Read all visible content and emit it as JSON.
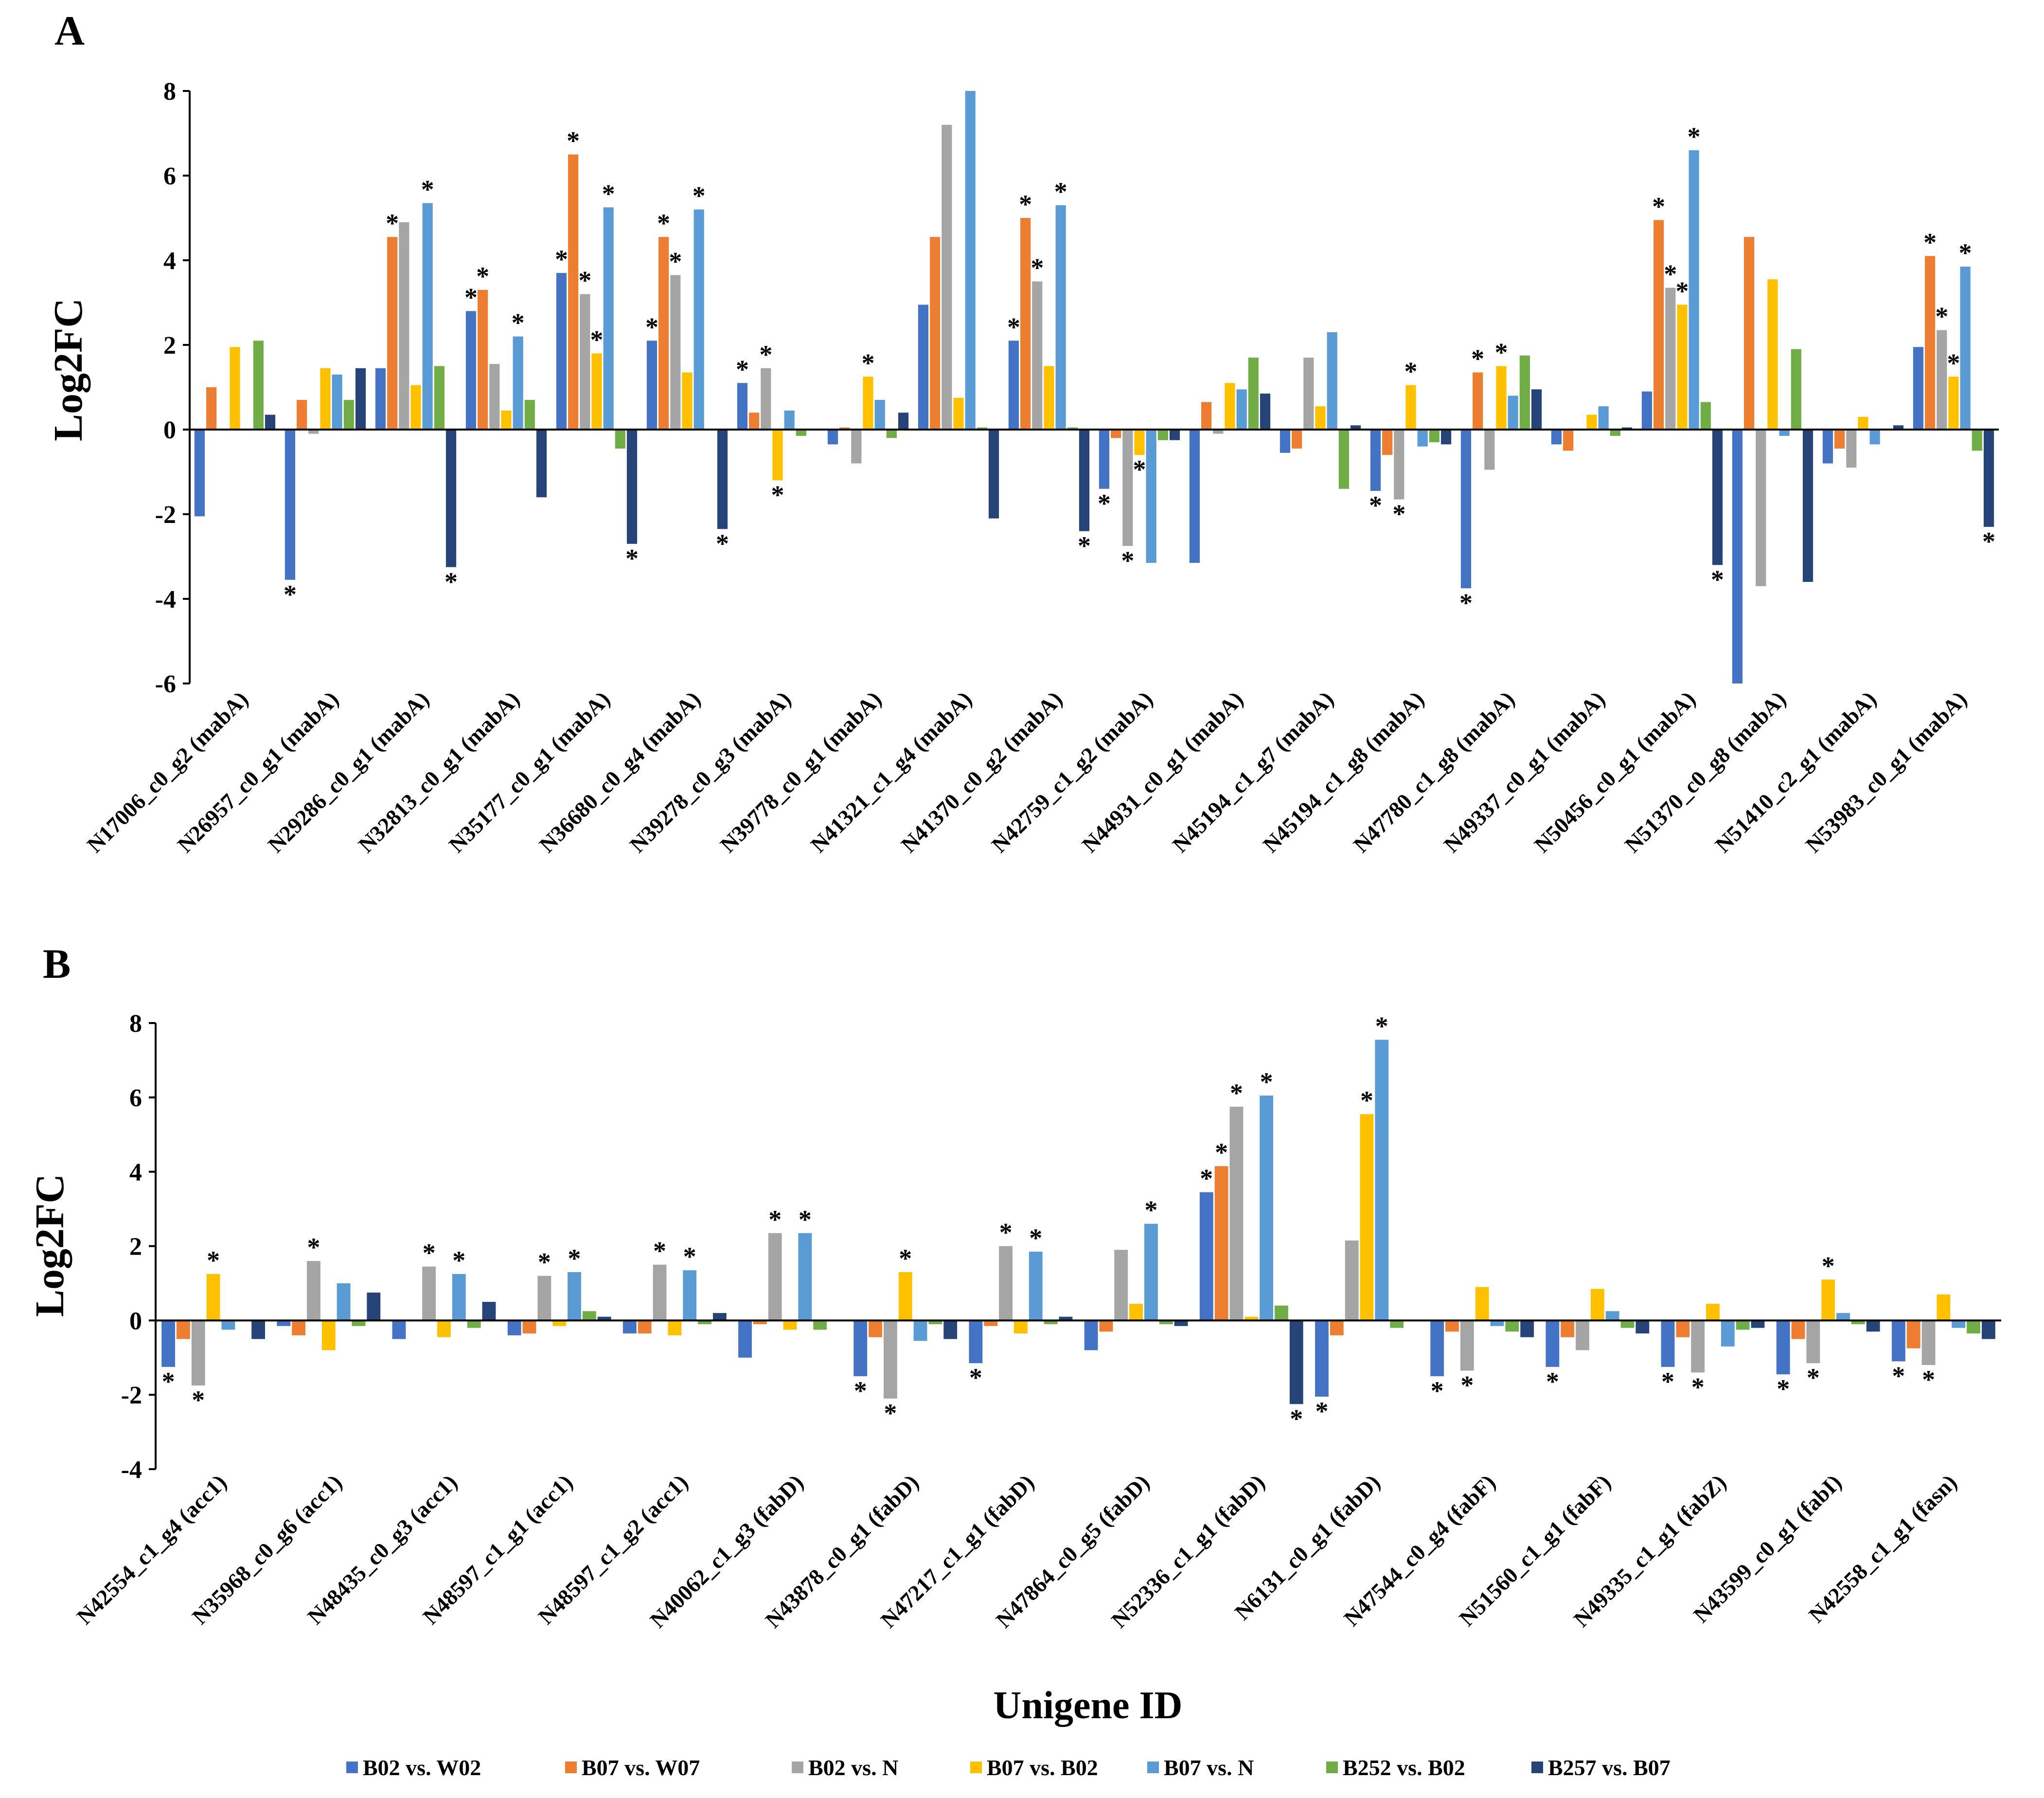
{
  "chart_data": [
    {
      "panel": "A",
      "type": "bar",
      "ylabel": "Log2FC",
      "ylim": [
        -6,
        8
      ],
      "yticks": [
        -6,
        -4,
        -2,
        0,
        2,
        4,
        6,
        8
      ],
      "categories": [
        "N17006_c0_g2 (mabA)",
        "N26957_c0_g1 (mabA)",
        "N29286_c0_g1 (mabA)",
        "N32813_c0_g1 (mabA)",
        "N35177_c0_g1 (mabA)",
        "N36680_c0_g4 (mabA)",
        "N39278_c0_g3 (mabA)",
        "N39778_c0_g1 (mabA)",
        "N41321_c1_g4 (mabA)",
        "N41370_c0_g2 (mabA)",
        "N42759_c1_g2 (mabA)",
        "N44931_c0_g1 (mabA)",
        "N45194_c1_g7 (mabA)",
        "N45194_c1_g8 (mabA)",
        "N47780_c1_g8 (mabA)",
        "N49337_c0_g1 (mabA)",
        "N50456_c0_g1 (mabA)",
        "N51370_c0_g8 (mabA)",
        "N51410_c2_g1 (mabA)",
        "N53983_c0_g1 (mabA)"
      ],
      "series": [
        {
          "name": "B02 vs. W02",
          "values": [
            -2.05,
            -3.55,
            1.45,
            2.8,
            3.7,
            2.1,
            1.1,
            -0.35,
            2.95,
            2.1,
            -1.4,
            -3.15,
            -0.55,
            -1.45,
            -3.75,
            -0.35,
            0.9,
            -6.0,
            -0.8,
            1.95
          ]
        },
        {
          "name": "B07 vs. W07",
          "values": [
            1.0,
            0.7,
            4.55,
            3.3,
            6.5,
            4.55,
            0.4,
            0.05,
            4.55,
            5.0,
            -0.2,
            0.65,
            -0.45,
            -0.6,
            1.35,
            -0.5,
            4.95,
            4.55,
            -0.45,
            4.1
          ]
        },
        {
          "name": "B02 vs. N",
          "values": [
            0.0,
            -0.1,
            4.9,
            1.55,
            3.2,
            3.65,
            1.45,
            -0.8,
            7.2,
            3.5,
            -2.75,
            -0.1,
            1.7,
            -1.65,
            -0.95,
            0.0,
            3.35,
            -3.7,
            -0.9,
            2.35
          ]
        },
        {
          "name": "B07 vs. B02",
          "values": [
            1.95,
            1.45,
            1.05,
            0.45,
            1.8,
            1.35,
            -1.2,
            1.25,
            0.75,
            1.5,
            -0.6,
            1.1,
            0.55,
            1.05,
            1.5,
            0.35,
            2.95,
            3.55,
            0.3,
            1.25
          ]
        },
        {
          "name": "B07 vs. N",
          "values": [
            0.0,
            1.3,
            5.35,
            2.2,
            5.25,
            5.2,
            0.45,
            0.7,
            8.0,
            5.3,
            -3.15,
            0.95,
            2.3,
            -0.4,
            0.8,
            0.55,
            6.6,
            -0.15,
            -0.35,
            3.85
          ]
        },
        {
          "name": "B252 vs. B02",
          "values": [
            2.1,
            0.7,
            1.5,
            0.7,
            -0.45,
            0.0,
            -0.15,
            -0.2,
            0.05,
            0.05,
            -0.25,
            1.7,
            -1.4,
            -0.3,
            1.75,
            -0.15,
            0.65,
            1.9,
            0.0,
            -0.5
          ]
        },
        {
          "name": "B257 vs. B07",
          "values": [
            0.35,
            1.45,
            -3.25,
            -1.6,
            -2.7,
            -2.35,
            0.0,
            0.4,
            -2.1,
            -2.4,
            -0.25,
            0.85,
            0.1,
            -0.35,
            0.95,
            0.05,
            -3.2,
            -3.6,
            0.1,
            -2.3
          ]
        }
      ],
      "significance": [
        [],
        [
          [
            0,
            "below"
          ]
        ],
        [
          [
            1,
            "above"
          ],
          [
            4,
            "above"
          ],
          [
            6,
            "below"
          ]
        ],
        [
          [
            0,
            "above"
          ],
          [
            1,
            "above"
          ],
          [
            4,
            "above"
          ]
        ],
        [
          [
            0,
            "above"
          ],
          [
            1,
            "above"
          ],
          [
            2,
            "above"
          ],
          [
            3,
            "above"
          ],
          [
            4,
            "above"
          ],
          [
            6,
            "below"
          ]
        ],
        [
          [
            0,
            "above"
          ],
          [
            1,
            "above"
          ],
          [
            2,
            "above"
          ],
          [
            4,
            "above"
          ],
          [
            6,
            "below"
          ]
        ],
        [
          [
            0,
            "above"
          ],
          [
            2,
            "above"
          ],
          [
            3,
            "below"
          ]
        ],
        [
          [
            3,
            "above"
          ]
        ],
        [],
        [
          [
            0,
            "above"
          ],
          [
            1,
            "above"
          ],
          [
            2,
            "above"
          ],
          [
            4,
            "above"
          ],
          [
            6,
            "below"
          ]
        ],
        [
          [
            0,
            "below"
          ],
          [
            2,
            "below"
          ],
          [
            3,
            "below"
          ]
        ],
        [],
        [],
        [
          [
            0,
            "below"
          ],
          [
            2,
            "below"
          ],
          [
            3,
            "above"
          ]
        ],
        [
          [
            0,
            "below"
          ],
          [
            1,
            "above"
          ],
          [
            3,
            "above"
          ]
        ],
        [],
        [
          [
            1,
            "above"
          ],
          [
            2,
            "above"
          ],
          [
            3,
            "above"
          ],
          [
            4,
            "above"
          ],
          [
            6,
            "below"
          ]
        ],
        [],
        [],
        [
          [
            1,
            "above"
          ],
          [
            2,
            "above"
          ],
          [
            3,
            "above"
          ],
          [
            4,
            "above"
          ],
          [
            6,
            "below"
          ]
        ]
      ]
    },
    {
      "panel": "B",
      "type": "bar",
      "ylabel": "Log2FC",
      "xlabel": "Unigene ID",
      "ylim": [
        -4,
        8
      ],
      "yticks": [
        -4,
        -2,
        0,
        2,
        4,
        6,
        8
      ],
      "categories": [
        "N42554_c1_g4 (acc1)",
        "N35968_c0_g6 (acc1)",
        "N48435_c0_g3 (acc1)",
        "N48597_c1_g1 (acc1)",
        "N48597_c1_g2 (acc1)",
        "N40062_c1_g3 (fabD)",
        "N43878_c0_g1 (fabD)",
        "N47217_c1_g1 (fabD)",
        "N47864_c0_g5 (fabD)",
        "N52336_c1_g1 (fabD)",
        "N6131_c0_g1 (fabD)",
        "N47544_c0_g4 (fabF)",
        "N51560_c1_g1 (fabF)",
        "N49335_c1_g1 (fabZ)",
        "N43599_c0_g1 (fabI)",
        "N42558_c1_g1 (fasn)"
      ],
      "series": [
        {
          "name": "B02 vs. W02",
          "values": [
            -1.25,
            -0.15,
            -0.5,
            -0.4,
            -0.35,
            -1.0,
            -1.5,
            -1.15,
            -0.8,
            3.45,
            -2.05,
            -1.5,
            -1.25,
            -1.25,
            -1.45,
            -1.1
          ]
        },
        {
          "name": "B07 vs. W07",
          "values": [
            -0.5,
            -0.4,
            0.0,
            -0.35,
            -0.35,
            -0.1,
            -0.45,
            -0.15,
            -0.3,
            4.15,
            -0.4,
            -0.3,
            -0.45,
            -0.45,
            -0.5,
            -0.75
          ]
        },
        {
          "name": "B02 vs. N",
          "values": [
            -1.75,
            1.6,
            1.45,
            1.2,
            1.5,
            2.35,
            -2.1,
            2.0,
            1.9,
            5.75,
            2.15,
            -1.35,
            -0.8,
            -1.4,
            -1.15,
            -1.2
          ]
        },
        {
          "name": "B07 vs. B02",
          "values": [
            1.25,
            -0.8,
            -0.45,
            -0.15,
            -0.4,
            -0.25,
            1.3,
            -0.35,
            0.45,
            0.1,
            5.55,
            0.9,
            0.85,
            0.45,
            1.1,
            0.7
          ]
        },
        {
          "name": "B07 vs. N",
          "values": [
            -0.25,
            1.0,
            1.25,
            1.3,
            1.35,
            2.35,
            -0.55,
            1.85,
            2.6,
            6.05,
            7.55,
            -0.15,
            0.25,
            -0.7,
            0.2,
            -0.2
          ]
        },
        {
          "name": "B252 vs. B02",
          "values": [
            0.0,
            -0.15,
            -0.2,
            0.25,
            -0.1,
            -0.25,
            -0.1,
            -0.1,
            -0.1,
            0.4,
            -0.2,
            -0.3,
            -0.2,
            -0.25,
            -0.1,
            -0.35
          ]
        },
        {
          "name": "B257 vs. B07",
          "values": [
            -0.5,
            0.75,
            0.5,
            0.1,
            0.2,
            0.0,
            -0.5,
            0.1,
            -0.15,
            -2.25,
            0.0,
            -0.45,
            -0.35,
            -0.2,
            -0.3,
            -0.5
          ]
        }
      ],
      "significance": [
        [
          [
            0,
            "below"
          ],
          [
            2,
            "below"
          ],
          [
            3,
            "above"
          ]
        ],
        [
          [
            2,
            "above"
          ]
        ],
        [
          [
            2,
            "above"
          ],
          [
            4,
            "above"
          ]
        ],
        [
          [
            2,
            "above"
          ],
          [
            4,
            "above"
          ]
        ],
        [
          [
            2,
            "above"
          ],
          [
            4,
            "above"
          ]
        ],
        [
          [
            2,
            "above"
          ],
          [
            4,
            "above"
          ]
        ],
        [
          [
            0,
            "below"
          ],
          [
            2,
            "below"
          ],
          [
            3,
            "above"
          ]
        ],
        [
          [
            0,
            "below"
          ],
          [
            2,
            "above"
          ],
          [
            4,
            "above"
          ]
        ],
        [
          [
            4,
            "above"
          ]
        ],
        [
          [
            0,
            "above"
          ],
          [
            1,
            "above"
          ],
          [
            2,
            "above"
          ],
          [
            4,
            "above"
          ],
          [
            6,
            "below"
          ]
        ],
        [
          [
            0,
            "below"
          ],
          [
            3,
            "above"
          ],
          [
            4,
            "above"
          ]
        ],
        [
          [
            0,
            "below"
          ],
          [
            2,
            "below"
          ]
        ],
        [
          [
            0,
            "below"
          ]
        ],
        [
          [
            0,
            "below"
          ],
          [
            2,
            "below"
          ]
        ],
        [
          [
            0,
            "below"
          ],
          [
            2,
            "below"
          ],
          [
            3,
            "above"
          ]
        ],
        [
          [
            0,
            "below"
          ],
          [
            2,
            "below"
          ]
        ]
      ]
    }
  ],
  "colors": [
    "#4472C4",
    "#ED7D31",
    "#A5A5A5",
    "#FFC000",
    "#5B9BD5",
    "#70AD47",
    "#264478"
  ],
  "panel_labels": [
    "A",
    "B"
  ],
  "star_symbol": "*"
}
